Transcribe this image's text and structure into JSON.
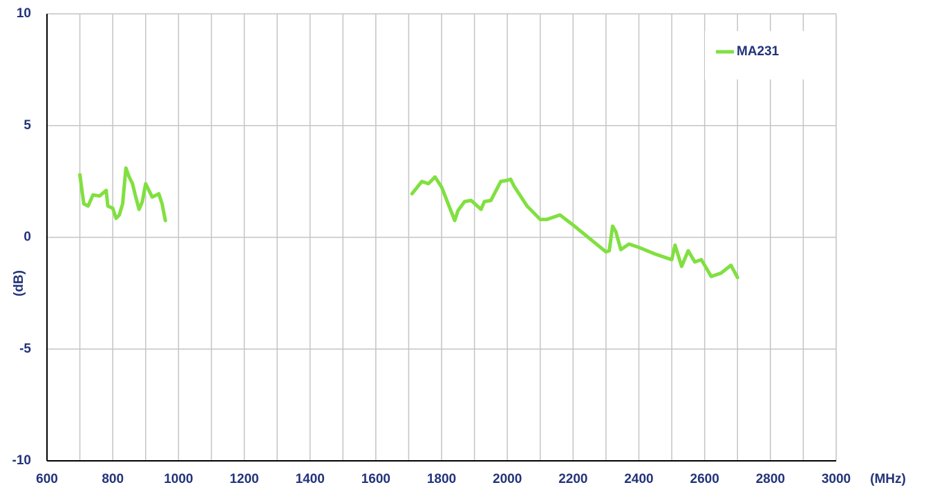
{
  "chart_data": {
    "type": "line",
    "x_label": "(MHz)",
    "y_label": "(dB)",
    "x": [
      700,
      705,
      712,
      725,
      740,
      760,
      780,
      785,
      800,
      810,
      820,
      830,
      840,
      850,
      860,
      870,
      880,
      890,
      900,
      910,
      920,
      940,
      950,
      960,
      1300,
      1710,
      1740,
      1760,
      1780,
      1800,
      1820,
      1840,
      1850,
      1870,
      1890,
      1920,
      1930,
      1950,
      1980,
      2000,
      2010,
      2020,
      2060,
      2100,
      2120,
      2160,
      2200,
      2300,
      2310,
      2320,
      2330,
      2345,
      2370,
      2400,
      2450,
      2500,
      2510,
      2530,
      2550,
      2570,
      2590,
      2620,
      2650,
      2680,
      2700
    ],
    "series": [
      {
        "name": "MA231",
        "color": "#80e040",
        "values": [
          2.8,
          2.25,
          1.5,
          1.4,
          1.9,
          1.85,
          2.1,
          1.4,
          1.3,
          0.85,
          1.0,
          1.5,
          3.1,
          2.7,
          2.4,
          1.8,
          1.25,
          1.6,
          2.4,
          2.1,
          1.8,
          1.95,
          1.5,
          0.75,
          null,
          1.95,
          2.5,
          2.4,
          2.7,
          2.25,
          1.5,
          0.75,
          1.2,
          1.6,
          1.65,
          1.25,
          1.6,
          1.65,
          2.5,
          2.55,
          2.6,
          2.3,
          1.4,
          0.8,
          0.8,
          1.0,
          0.55,
          -0.65,
          -0.6,
          0.5,
          0.25,
          -0.55,
          -0.3,
          -0.45,
          -0.75,
          -1.0,
          -0.35,
          -1.3,
          -0.6,
          -1.1,
          -1.0,
          -1.75,
          -1.6,
          -1.25,
          -1.8
        ]
      }
    ],
    "xlim": [
      600,
      3000
    ],
    "xticks": [
      600,
      800,
      1000,
      1200,
      1400,
      1600,
      1800,
      2000,
      2200,
      2400,
      2600,
      2800,
      3000
    ],
    "xminorticks": [
      700,
      900,
      1100,
      1300,
      1500,
      1700,
      1900,
      2100,
      2300,
      2500,
      2700,
      2900
    ],
    "ylim": [
      -10,
      10
    ],
    "yticks": [
      -10,
      -5,
      0,
      5,
      10
    ],
    "grid": true,
    "legend": "upper right"
  }
}
